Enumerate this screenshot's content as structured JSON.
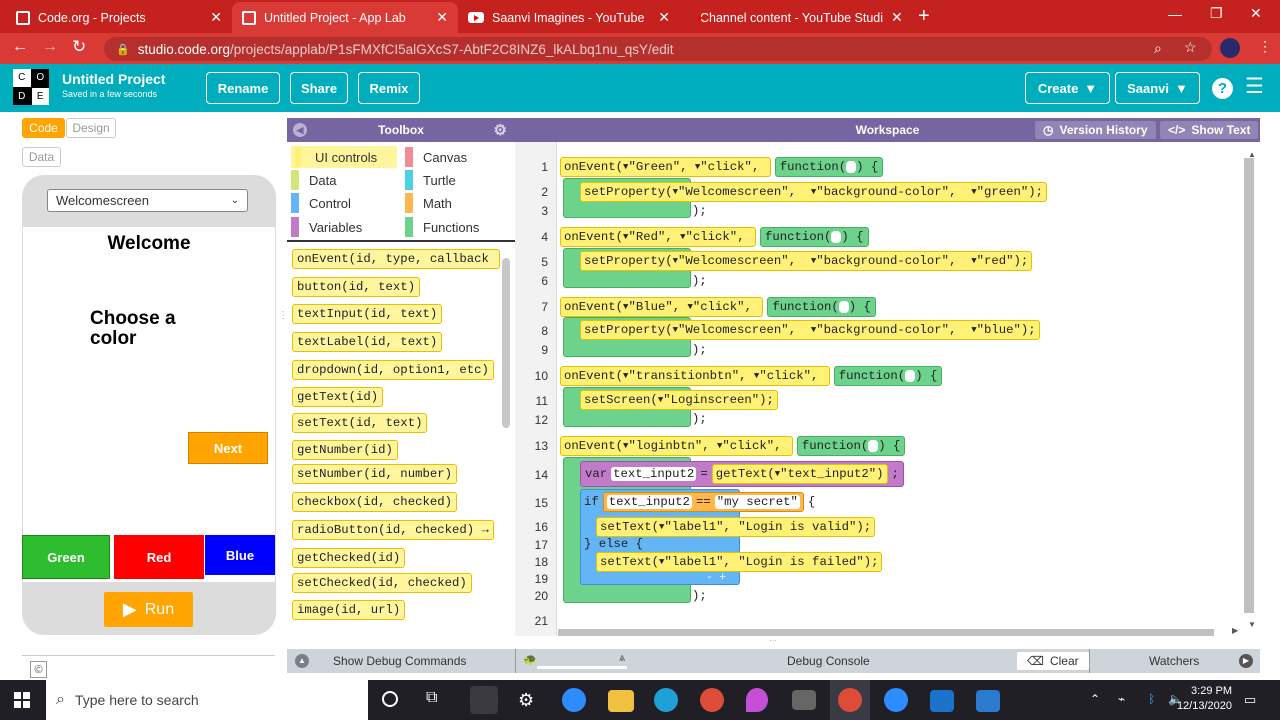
{
  "browser": {
    "tabs": [
      {
        "title": "Code.org - Projects",
        "icon": "grid-icon"
      },
      {
        "title": "Untitled Project - App Lab",
        "icon": "grid-icon"
      },
      {
        "title": "Saanvi Imagines - YouTube",
        "icon": "youtube-icon"
      },
      {
        "title": "Channel content - YouTube Studi",
        "icon": "youtube-icon"
      }
    ],
    "url_host": "studio.code.org",
    "url_path": "/projects/applab/P1sFMXfCI5alGXcS7-AbtF2C8INZ6_lkALbq1nu_qsY/edit"
  },
  "header": {
    "logo_letters": [
      "C",
      "O",
      "D",
      "E"
    ],
    "project_title": "Untitled Project",
    "saved_text": "Saved in a few seconds",
    "rename": "Rename",
    "share": "Share",
    "remix": "Remix",
    "create": "Create",
    "user": "Saanvi"
  },
  "left": {
    "code_tab": "Code",
    "design_tab": "Design",
    "data_tab": "Data",
    "screen_select": "Welcomescreen",
    "welcome": "Welcome",
    "choose1": "Choose a",
    "choose2": "color",
    "next": "Next",
    "green": "Green",
    "red": "Red",
    "blue": "Blue",
    "run": "Run",
    "copyright": "©"
  },
  "toolbox": {
    "title": "Toolbox",
    "categories": [
      {
        "name": "UI controls",
        "color": "#fff176"
      },
      {
        "name": "Canvas",
        "color": "#f28b95"
      },
      {
        "name": "Data",
        "color": "#d4e57a"
      },
      {
        "name": "Turtle",
        "color": "#4dd0e1"
      },
      {
        "name": "Control",
        "color": "#64b5f6"
      },
      {
        "name": "Math",
        "color": "#ffb74d"
      },
      {
        "name": "Variables",
        "color": "#c27bc8"
      },
      {
        "name": "Functions",
        "color": "#6cd28c"
      }
    ],
    "blocks": [
      "onEvent(id, type, callback",
      "button(id, text)",
      "textInput(id, text)",
      "textLabel(id, text)",
      "dropdown(id, option1, etc)",
      "getText(id)",
      "setText(id, text)",
      "getNumber(id)",
      "setNumber(id, number)",
      "checkbox(id, checked)",
      "radioButton(id, checked) →",
      "getChecked(id)",
      "setChecked(id, checked)",
      "image(id, url)"
    ]
  },
  "workspace": {
    "title": "Workspace",
    "version_history": "Version History",
    "show_text": "Show Text",
    "line_numbers": [
      "1",
      "2",
      "3",
      "4",
      "5",
      "6",
      "7",
      "8",
      "9",
      "10",
      "11",
      "12",
      "13",
      "14",
      "15",
      "16",
      "17",
      "18",
      "19",
      "20",
      "21"
    ],
    "events": [
      {
        "id": "\"Green\"",
        "color": "\"green\""
      },
      {
        "id": "\"Red\"",
        "color": "\"red\""
      },
      {
        "id": "\"Blue\"",
        "color": "\"blue\""
      }
    ],
    "kw_onEvent": "onEvent",
    "kw_click": "\"click\"",
    "kw_function": "function",
    "kw_setProperty": "setProperty",
    "kw_welcomescreen": "\"Welcomescreen\"",
    "kw_bgcolor": "\"background-color\"",
    "transition_id": "\"transitionbtn\"",
    "kw_setScreen": "setScreen",
    "login_screen": "\"Loginscreen\"",
    "login_id": "\"loginbtn\"",
    "kw_var": "var",
    "var_name": "text_input2",
    "kw_getText": "getText",
    "text_input_id": "\"text_input2\"",
    "kw_if": "if",
    "kw_eq": "==",
    "secret": "\"my secret\"",
    "kw_setText": "setText",
    "label_id": "\"label1\"",
    "valid_msg": "\"Login is valid\"",
    "kw_else": "} else {",
    "failed_msg": "\"Login is failed\""
  },
  "debug": {
    "show_debug": "Show Debug Commands",
    "console": "Debug Console",
    "clear": "Clear",
    "watchers": "Watchers"
  },
  "taskbar": {
    "search_placeholder": "Type here to search",
    "time": "3:29 PM",
    "date": "12/13/2020"
  }
}
